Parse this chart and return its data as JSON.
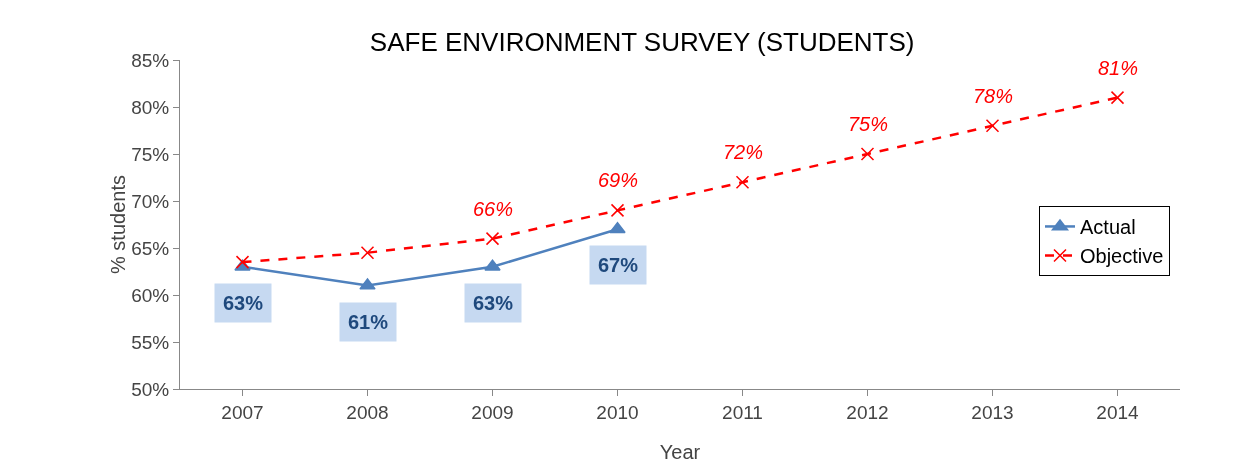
{
  "chart_data": {
    "type": "line",
    "title": "SAFE ENVIRONMENT SURVEY (STUDENTS)",
    "xlabel": "Year",
    "ylabel": "% students",
    "categories": [
      "2007",
      "2008",
      "2009",
      "2010",
      "2011",
      "2012",
      "2013",
      "2014"
    ],
    "series": [
      {
        "name": "Actual",
        "color": "#4f81bd",
        "marker": "triangle",
        "line_style": "solid",
        "values": [
          63,
          61,
          63,
          67,
          null,
          null,
          null,
          null
        ],
        "value_labels": [
          "63%",
          "61%",
          "63%",
          "67%",
          null,
          null,
          null,
          null
        ]
      },
      {
        "name": "Objective",
        "color": "#ff0000",
        "marker": "cross",
        "line_style": "dashed",
        "values": [
          63.5,
          64.5,
          66,
          69,
          72,
          75,
          78,
          81
        ],
        "value_labels": [
          null,
          null,
          "66%",
          "69%",
          "72%",
          "75%",
          "78%",
          "81%"
        ]
      }
    ],
    "ylim": [
      50,
      85
    ],
    "yticks": [
      {
        "value": 50,
        "label": "50%"
      },
      {
        "value": 55,
        "label": "55%"
      },
      {
        "value": 60,
        "label": "60%"
      },
      {
        "value": 65,
        "label": "65%"
      },
      {
        "value": 70,
        "label": "70%"
      },
      {
        "value": 75,
        "label": "75%"
      },
      {
        "value": 80,
        "label": "80%"
      },
      {
        "value": 85,
        "label": "85%"
      }
    ],
    "grid": false,
    "legend": "right"
  }
}
